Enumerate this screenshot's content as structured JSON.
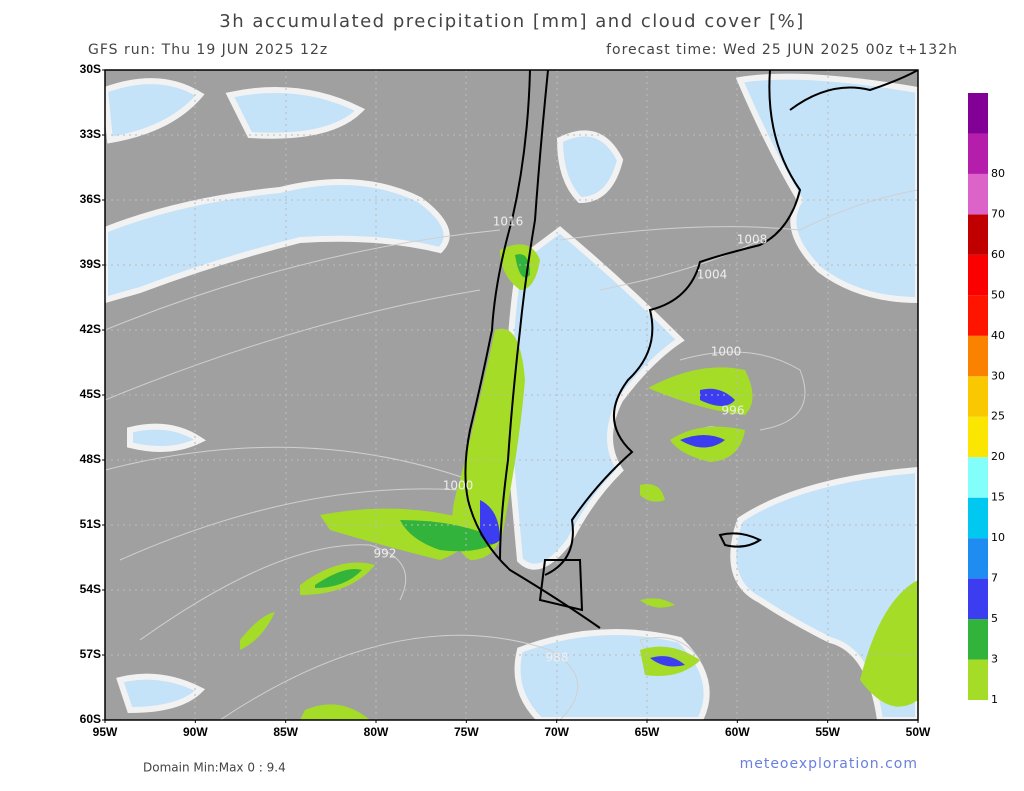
{
  "header": {
    "title": "3h accumulated precipitation [mm] and cloud cover [%]",
    "run": "GFS run: Thu 19 JUN 2025 12z",
    "forecast": "forecast time: Wed 25 JUN 2025 00z  t+132h"
  },
  "lat_labels": [
    "30S",
    "33S",
    "36S",
    "39S",
    "42S",
    "45S",
    "48S",
    "51S",
    "54S",
    "57S",
    "60S"
  ],
  "lon_labels": [
    "95W",
    "90W",
    "85W",
    "80W",
    "75W",
    "70W",
    "65W",
    "60W",
    "55W",
    "50W"
  ],
  "isobars": [
    "1016",
    "1008",
    "1004",
    "1000",
    "996",
    "1000",
    "992",
    "988"
  ],
  "colorbar": {
    "labels": [
      "1",
      "3",
      "5",
      "7",
      "10",
      "15",
      "20",
      "25",
      "30",
      "40",
      "50",
      "60",
      "70",
      "80"
    ],
    "colors": [
      "#a5dc28",
      "#32b43c",
      "#3c3cf0",
      "#1e8cf0",
      "#00c8f0",
      "#82fffa",
      "#fae600",
      "#fac800",
      "#fa8200",
      "#ff1400",
      "#fa0000",
      "#c00000",
      "#dc64c8",
      "#b41eaa",
      "#820096"
    ]
  },
  "footer": {
    "domain": "Domain Min:Max 0 : 9.4",
    "site": "meteoexploration.com"
  }
}
